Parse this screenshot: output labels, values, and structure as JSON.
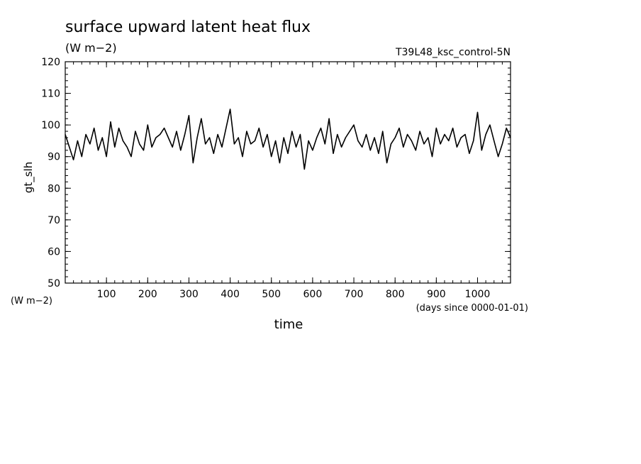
{
  "header": {
    "title": "surface upward latent heat flux",
    "units": "(W m−2)",
    "experiment": "T39L48_ksc_control-5N"
  },
  "axes": {
    "y_name": "gt_slh",
    "y_units": "(W m−2)",
    "x_name": "time",
    "x_units": "(days since 0000-01-01)"
  },
  "chart_data": {
    "type": "line",
    "title": "surface upward latent heat flux",
    "xlabel": "time",
    "ylabel": "gt_slh",
    "xlim": [
      0,
      1080
    ],
    "ylim": [
      50,
      120
    ],
    "x_ticks": [
      100,
      200,
      300,
      400,
      500,
      600,
      700,
      800,
      900,
      1000
    ],
    "y_ticks": [
      50,
      60,
      70,
      80,
      90,
      100,
      110,
      120
    ],
    "grid": false,
    "line_color": "#000000",
    "series": [
      {
        "x": [
          0,
          10,
          20,
          30,
          40,
          50,
          60,
          70,
          80,
          90,
          100,
          110,
          120,
          130,
          140,
          150,
          160,
          170,
          180,
          190,
          200,
          210,
          220,
          230,
          240,
          250,
          260,
          270,
          280,
          290,
          300,
          310,
          320,
          330,
          340,
          350,
          360,
          370,
          380,
          390,
          400,
          410,
          420,
          430,
          440,
          450,
          460,
          470,
          480,
          490,
          500,
          510,
          520,
          530,
          540,
          550,
          560,
          570,
          580,
          590,
          600,
          610,
          620,
          630,
          640,
          650,
          660,
          670,
          680,
          690,
          700,
          710,
          720,
          730,
          740,
          750,
          760,
          770,
          780,
          790,
          800,
          810,
          820,
          830,
          840,
          850,
          860,
          870,
          880,
          890,
          900,
          910,
          920,
          930,
          940,
          950,
          960,
          970,
          980,
          990,
          1000,
          1010,
          1020,
          1030,
          1040,
          1050,
          1060,
          1070,
          1080
        ],
        "values": [
          97,
          93,
          89,
          95,
          90,
          97,
          94,
          99,
          92,
          96,
          90,
          101,
          93,
          99,
          95,
          93,
          90,
          98,
          94,
          92,
          100,
          93,
          96,
          97,
          99,
          96,
          93,
          98,
          92,
          97,
          103,
          88,
          96,
          102,
          94,
          96,
          91,
          97,
          93,
          99,
          105,
          94,
          96,
          90,
          98,
          94,
          95,
          99,
          93,
          97,
          90,
          95,
          88,
          96,
          91,
          98,
          93,
          97,
          86,
          95,
          92,
          96,
          99,
          94,
          102,
          91,
          97,
          93,
          96,
          98,
          100,
          95,
          93,
          97,
          92,
          96,
          91,
          98,
          88,
          94,
          96,
          99,
          93,
          97,
          95,
          92,
          98,
          94,
          96,
          90,
          99,
          94,
          97,
          95,
          99,
          93,
          96,
          97,
          91,
          95,
          104,
          92,
          97,
          100,
          95,
          90,
          94,
          99,
          96
        ]
      }
    ]
  }
}
